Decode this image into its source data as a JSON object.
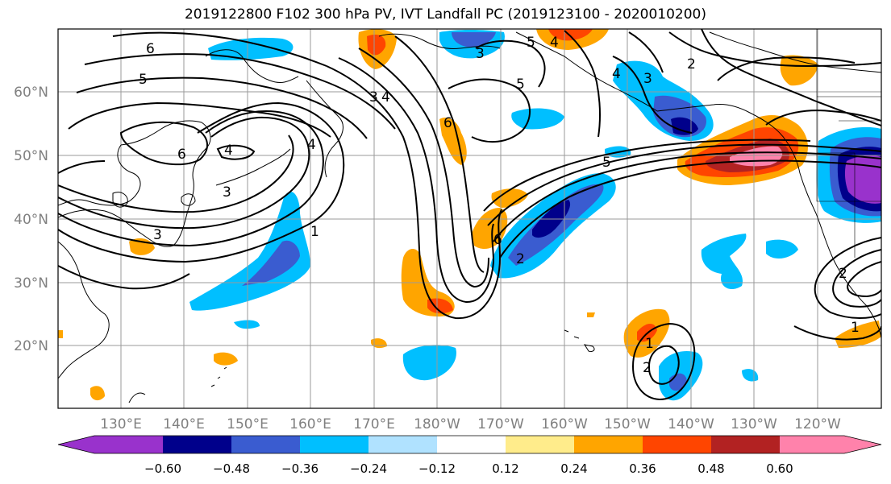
{
  "title": "2019122800 F102 300 hPa PV, IVT Landfall PC (2019123100 - 2020010200)",
  "lat_labels": [
    "60°N",
    "50°N",
    "40°N",
    "30°N",
    "20°N"
  ],
  "lon_labels": [
    "130°E",
    "140°E",
    "150°E",
    "160°E",
    "170°E",
    "180°W",
    "170°W",
    "160°W",
    "150°W",
    "140°W",
    "130°W",
    "120°W"
  ],
  "colorbar": {
    "tick_labels": [
      "−0.60",
      "−0.48",
      "−0.36",
      "−0.24",
      "−0.12",
      "0.12",
      "0.24",
      "0.36",
      "0.48",
      "0.60"
    ],
    "colors": [
      "#9932cc",
      "#00008b",
      "#3a5cd0",
      "#00bfff",
      "#b0e2ff",
      "#ffffff",
      "#ffec8b",
      "#ffa500",
      "#ff4500",
      "#b22222",
      "#ff82ab"
    ]
  },
  "contour_labels": [
    "6",
    "5",
    "6",
    "3",
    "4",
    "3",
    "4",
    "2",
    "3",
    "3",
    "4",
    "5",
    "6",
    "5",
    "4",
    "6",
    "2",
    "3",
    "4",
    "5",
    "1",
    "2",
    "1",
    "2",
    "1"
  ]
}
